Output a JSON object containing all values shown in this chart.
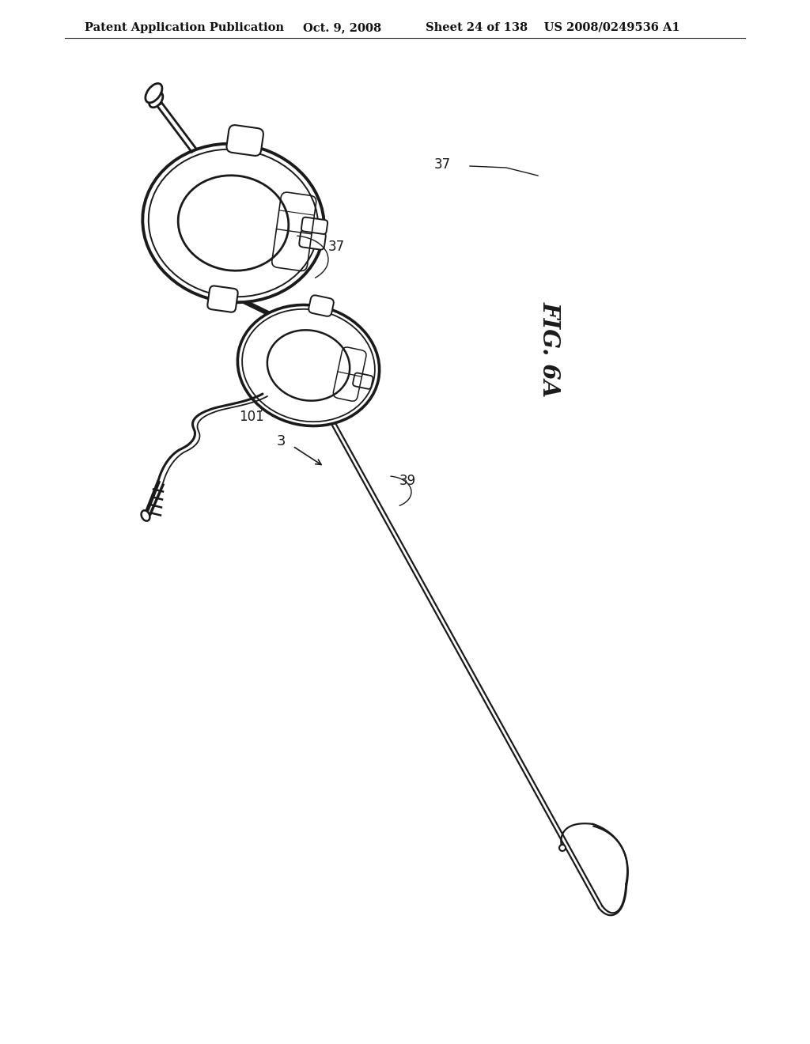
{
  "background_color": "#ffffff",
  "line_color": "#1a1a1a",
  "header_left": "Patent Application Publication",
  "header_mid": "Oct. 9, 2008",
  "header_right": "Sheet 24 of 138    US 2008/0249536 A1",
  "fig_label": "FIG. 6A",
  "label_37_top": "37",
  "label_37_bottom": "37",
  "label_101": "101",
  "label_3": "3",
  "label_39": "39"
}
